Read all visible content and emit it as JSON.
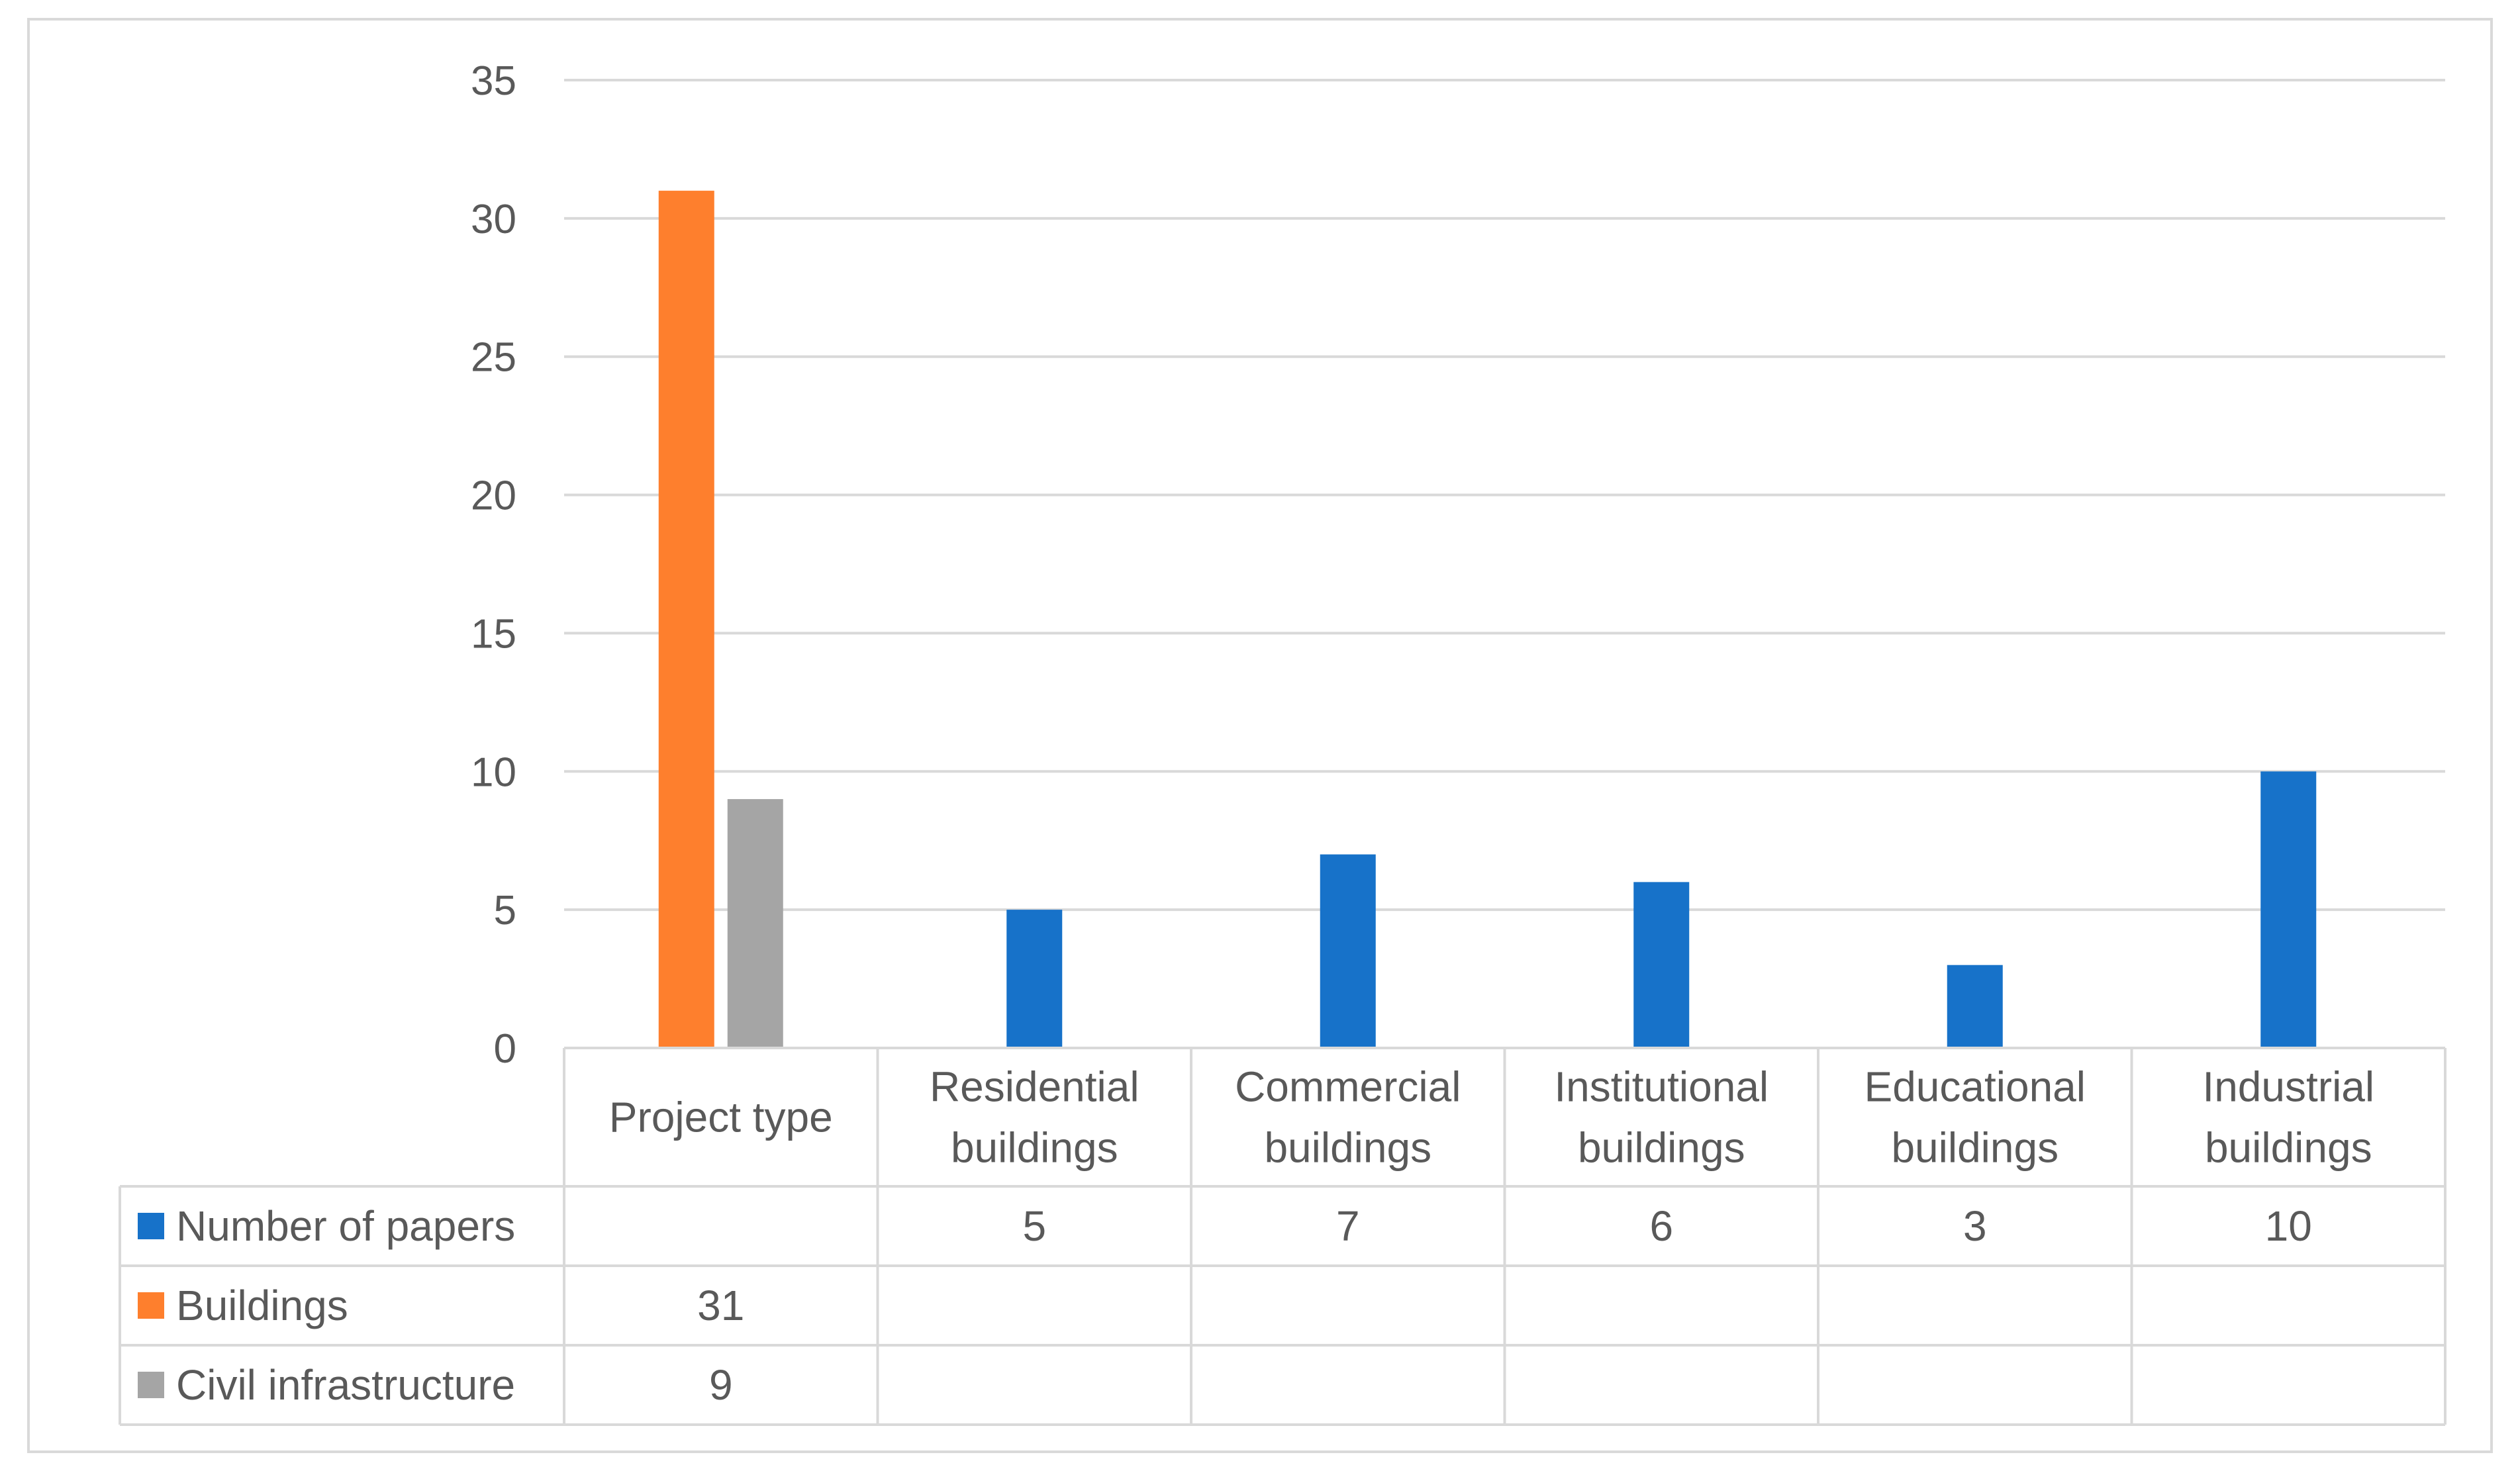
{
  "chart_data": {
    "type": "bar",
    "title": "",
    "xlabel": "",
    "ylabel": "",
    "ylim": [
      0,
      35
    ],
    "yticks": [
      "0",
      "5",
      "10",
      "15",
      "20",
      "25",
      "30",
      "35"
    ],
    "grid": true,
    "legend": "data-table",
    "categories": [
      [
        "Project type"
      ],
      [
        "Residential",
        "buildings"
      ],
      [
        "Commercial",
        "buildings"
      ],
      [
        "Institutional",
        "buildings"
      ],
      [
        "Educational",
        "buildings"
      ],
      [
        "Industrial",
        "buildings"
      ]
    ],
    "series": [
      {
        "name": "Number of papers",
        "color": "#1772c9",
        "values": [
          null,
          5,
          7,
          6,
          3,
          10
        ]
      },
      {
        "name": "Buildings",
        "color": "#fe7f2d",
        "values": [
          31,
          null,
          null,
          null,
          null,
          null
        ]
      },
      {
        "name": "Civil infrastructure",
        "color": "#a5a5a5",
        "values": [
          9,
          null,
          null,
          null,
          null,
          null
        ]
      }
    ]
  }
}
